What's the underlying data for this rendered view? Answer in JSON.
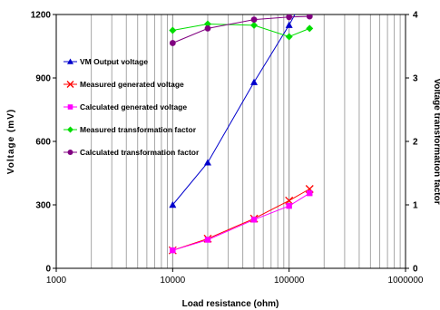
{
  "chart_data": {
    "type": "line",
    "xscale": "log",
    "xlim": [
      1000,
      1000000
    ],
    "ylim": [
      0,
      1200
    ],
    "y2lim": [
      0,
      4
    ],
    "x_ticks": [
      "1000",
      "10000",
      "100000",
      "1000000"
    ],
    "y_ticks": [
      "0",
      "300",
      "600",
      "900",
      "1200"
    ],
    "y2_ticks": [
      "0",
      "1",
      "2",
      "3",
      "4"
    ],
    "xlabel": "Load resistance (ohm)",
    "ylabel": "Voltage (mV)",
    "y2label": "Voltage transformation factor",
    "grid": "vertical minor and major lines on log x-axis",
    "legend_position": "left",
    "series": [
      {
        "name": "VM Output voltage",
        "axis": "left",
        "color": "#0000cc",
        "marker": "triangle",
        "x": [
          10000,
          20000,
          50000,
          100000,
          120000
        ],
        "y": [
          300,
          500,
          880,
          1150,
          1230
        ]
      },
      {
        "name": "Measured generated voltage",
        "axis": "left",
        "color": "#ff0000",
        "marker": "x",
        "x": [
          10000,
          20000,
          50000,
          100000,
          150000
        ],
        "y": [
          85,
          140,
          235,
          320,
          375
        ]
      },
      {
        "name": "Calculated generated voltage",
        "axis": "left",
        "color": "#ff00ff",
        "marker": "square",
        "x": [
          10000,
          20000,
          50000,
          100000,
          150000
        ],
        "y": [
          85,
          135,
          230,
          295,
          355
        ]
      },
      {
        "name": "Measured transformation factor",
        "axis": "right",
        "color": "#00dd00",
        "marker": "diamond",
        "x": [
          10000,
          20000,
          50000,
          100000,
          150000
        ],
        "y": [
          3.75,
          3.85,
          3.83,
          3.65,
          3.78
        ]
      },
      {
        "name": "Calculated transformation factor",
        "axis": "right",
        "color": "#800080",
        "marker": "circle",
        "x": [
          10000,
          20000,
          50000,
          100000,
          150000
        ],
        "y": [
          3.55,
          3.78,
          3.92,
          3.96,
          3.97
        ]
      }
    ]
  }
}
